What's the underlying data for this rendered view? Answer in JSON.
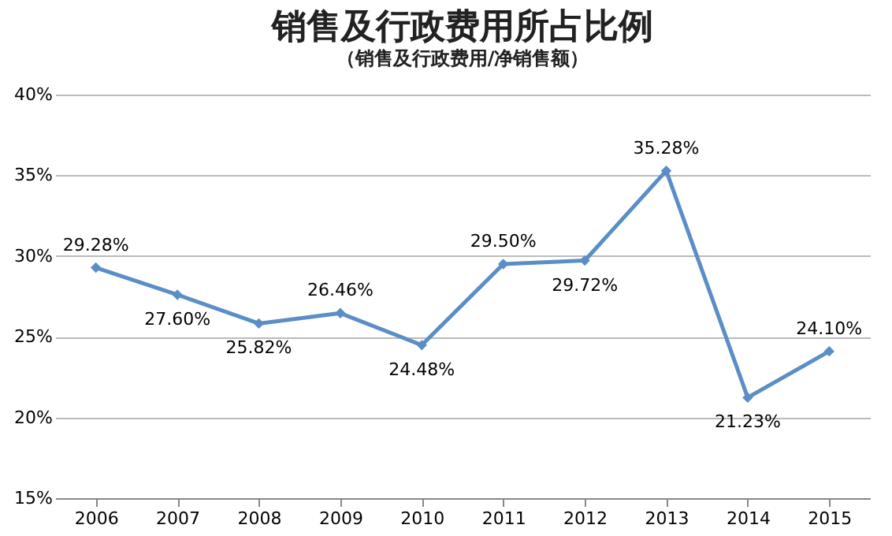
{
  "chart_data": {
    "type": "line",
    "title": "销售及行政费用所占比例",
    "subtitle": "（销售及行政费用/净销售额）",
    "categories": [
      "2006",
      "2007",
      "2008",
      "2009",
      "2010",
      "2011",
      "2012",
      "2013",
      "2014",
      "2015"
    ],
    "series": [
      {
        "color": "#5b8ec6",
        "values": [
          29.28,
          27.6,
          25.82,
          26.46,
          24.48,
          29.5,
          29.72,
          35.28,
          21.23,
          24.1
        ],
        "value_labels": [
          "29.28%",
          "27.60%",
          "25.82%",
          "26.46%",
          "24.48%",
          "29.50%",
          "29.72%",
          "35.28%",
          "21.23%",
          "24.10%"
        ]
      }
    ],
    "ylim": [
      15,
      40
    ],
    "yticks": [
      {
        "value": 15,
        "label": "15%"
      },
      {
        "value": 20,
        "label": "20%"
      },
      {
        "value": 25,
        "label": "25%"
      },
      {
        "value": 30,
        "label": "30%"
      },
      {
        "value": 35,
        "label": "35%"
      },
      {
        "value": 40,
        "label": "40%"
      }
    ],
    "grid": "y",
    "marker": "diamond",
    "line_style": "solid"
  }
}
